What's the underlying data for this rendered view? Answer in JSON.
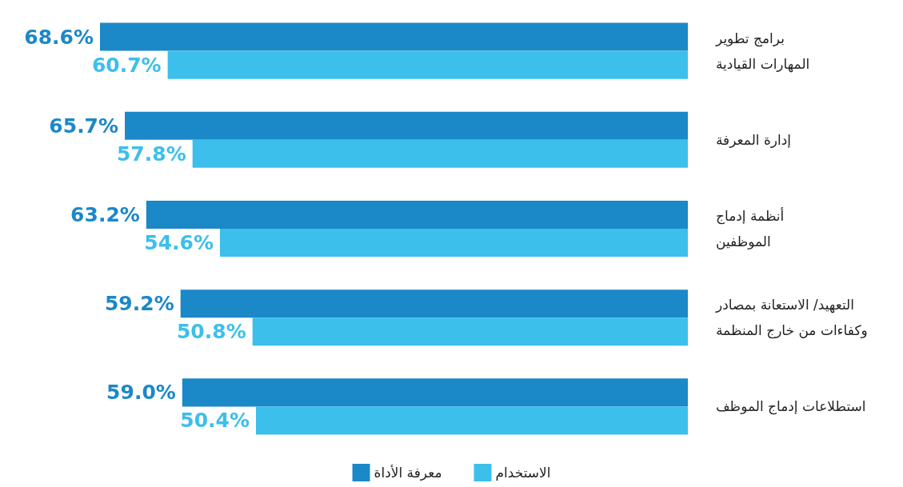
{
  "chart_data": {
    "type": "bar",
    "orientation": "horizontal",
    "categories": [
      "برامج تطوير\nالمهارات القيادية",
      "إدارة المعرفة",
      "أنظمة إدماج\nالموظفين",
      "التعهيد/ الاستعانة بمصادر\nوكفاءات من خارج المنظمة",
      "استطلاعات إدماج الموظف"
    ],
    "series": [
      {
        "name": "معرفة الأداة",
        "color": "#1b88c7",
        "values": [
          68.6,
          65.7,
          63.2,
          59.2,
          59.0
        ],
        "value_labels": [
          "68.6%",
          "65.7%",
          "63.2%",
          "59.2%",
          "59.0%"
        ]
      },
      {
        "name": "الاستخدام",
        "color": "#3cbfeb",
        "values": [
          60.7,
          57.8,
          54.6,
          50.8,
          50.4
        ],
        "value_labels": [
          "60.7%",
          "57.8%",
          "54.6%",
          "50.8%",
          "50.4%"
        ]
      }
    ],
    "legend": "bottom"
  }
}
